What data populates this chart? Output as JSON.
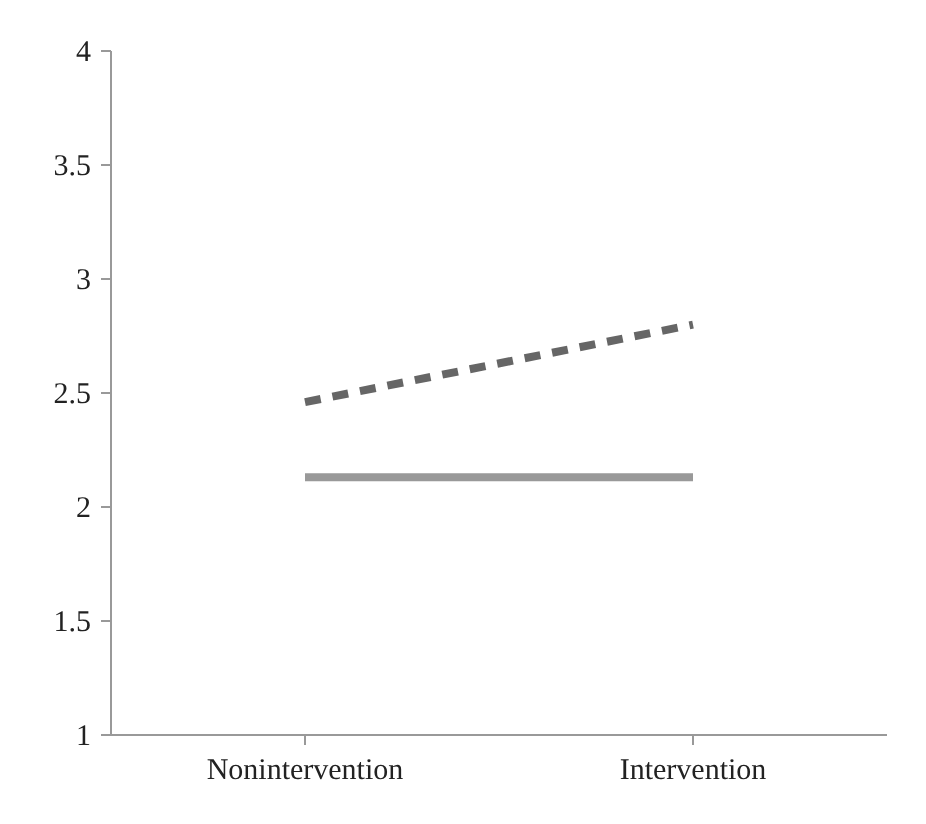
{
  "chart_data": {
    "type": "line",
    "categories": [
      "Nonintervention",
      "Intervention"
    ],
    "series": [
      {
        "color": "#666666",
        "values": [
          2.46,
          2.8
        ],
        "line_style": "dashed"
      },
      {
        "color": "#999999",
        "values": [
          2.13,
          2.13
        ],
        "line_style": "solid"
      }
    ],
    "ylim": [
      1,
      4
    ],
    "yticks": [
      1,
      1.5,
      2,
      2.5,
      3,
      3.5,
      4
    ],
    "grid": false,
    "marker": "none"
  }
}
